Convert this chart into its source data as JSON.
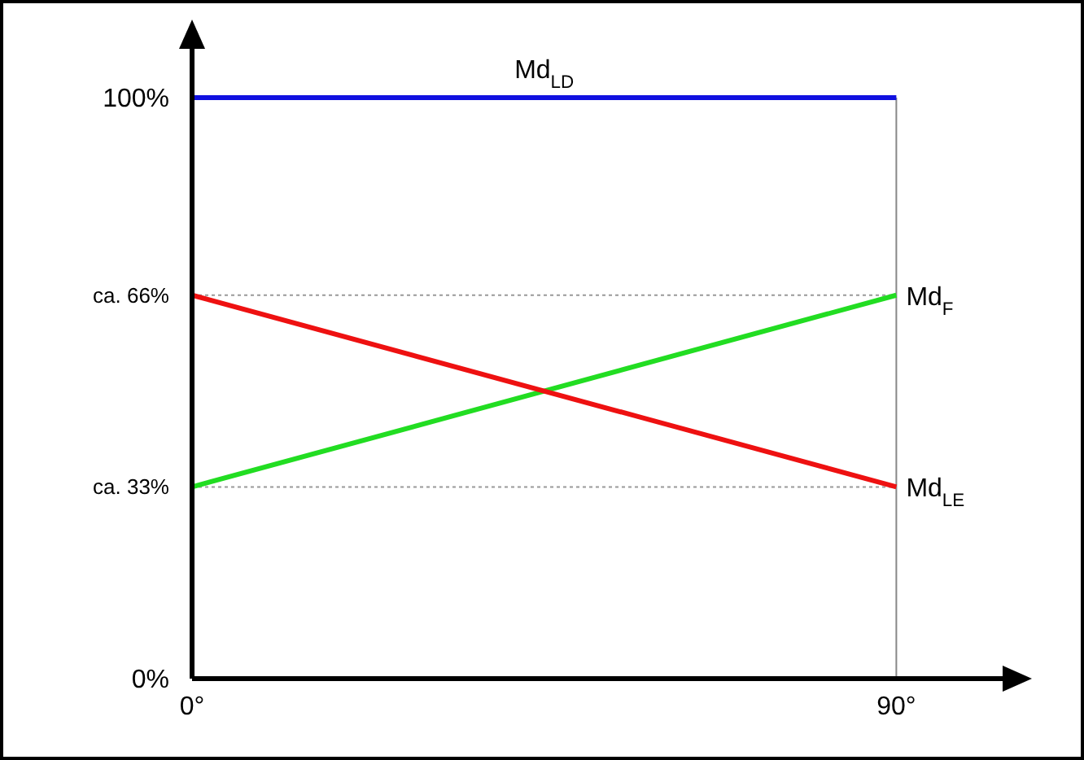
{
  "chart_data": {
    "type": "line",
    "x": [
      0,
      90
    ],
    "xlim": [
      0,
      104
    ],
    "xticks": [
      {
        "value": 0,
        "label": "0°"
      },
      {
        "value": 90,
        "label": "90°"
      }
    ],
    "ylim": [
      0,
      100
    ],
    "yticks": [
      {
        "value": 0,
        "label": "0%"
      },
      {
        "value": 33,
        "label": "ca. 33%"
      },
      {
        "value": 66,
        "label": "ca. 66%"
      },
      {
        "value": 100,
        "label": "100%"
      }
    ],
    "grid": false,
    "marker": "none",
    "line_style": "solid",
    "series": [
      {
        "name": "Md$_{LD}$",
        "color": "#1010e0",
        "values": [
          100,
          100
        ]
      },
      {
        "name": "Md$_{F}$",
        "color": "#22dd22",
        "values": [
          33,
          66
        ]
      },
      {
        "name": "Md$_{LE}$",
        "color": "#ee1111",
        "values": [
          66,
          33
        ]
      }
    ],
    "ref_lines": [
      {
        "axis": "y",
        "value": 33,
        "color": "#999999",
        "line_style": "dotted"
      },
      {
        "axis": "y",
        "value": 66,
        "color": "#999999",
        "line_style": "dotted"
      },
      {
        "axis": "x",
        "value": 90,
        "color": "#888888",
        "line_style": "solid"
      }
    ]
  }
}
